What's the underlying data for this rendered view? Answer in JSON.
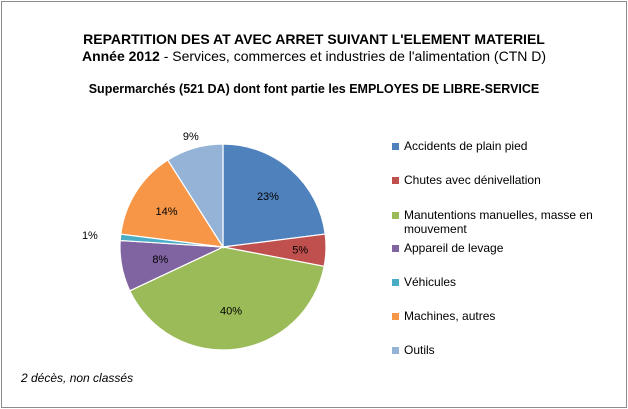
{
  "chart_data": {
    "type": "pie",
    "title_line1": "REPARTITION DES AT AVEC ARRET SUIVANT L'ELEMENT MATERIEL",
    "title_line2_year": "Année 2012",
    "title_line2_rest": "- Services, commerces et industries de l'alimentation (CTN D)",
    "subtitle": "Supermarchés (521 DA) dont font partie les EMPLOYES DE LIBRE-SERVICE",
    "footnote": "2 décès, non classés",
    "legend_position": "right",
    "slices": [
      {
        "name": "Accidents de plain pied",
        "value": 23,
        "label": "23%",
        "color": "#4f81bd"
      },
      {
        "name": "Chutes avec dénivellation",
        "value": 5,
        "label": "5%",
        "color": "#c0504d"
      },
      {
        "name": "Manutentions manuelles, masse en mouvement",
        "value": 40,
        "label": "40%",
        "color": "#9bbb59"
      },
      {
        "name": "Appareil de levage",
        "value": 8,
        "label": "8%",
        "color": "#8064a2"
      },
      {
        "name": "Véhicules",
        "value": 1,
        "label": "1%",
        "color": "#4bacc6"
      },
      {
        "name": "Machines, autres",
        "value": 14,
        "label": "14%",
        "color": "#f79646"
      },
      {
        "name": "Outils",
        "value": 9,
        "label": "9%",
        "color": "#95b3d7"
      }
    ]
  }
}
